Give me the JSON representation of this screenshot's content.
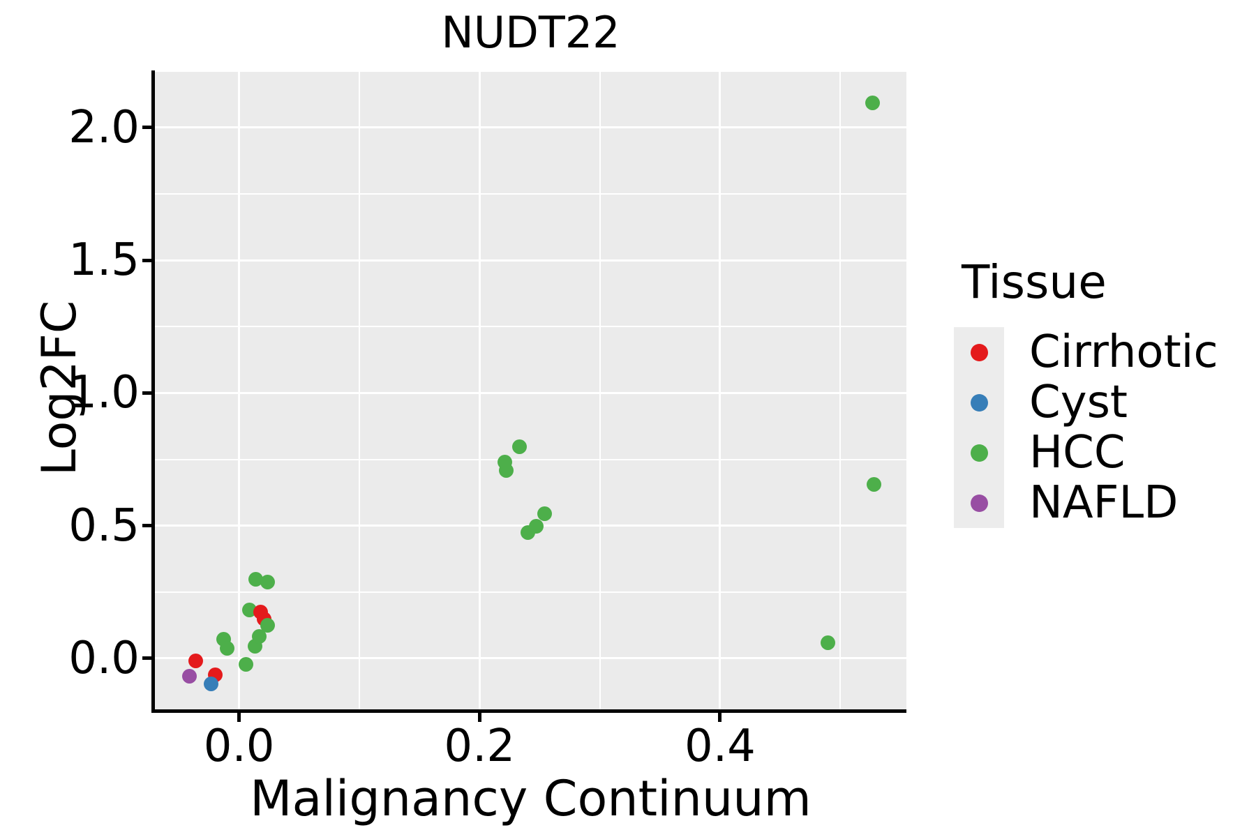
{
  "title": "NUDT22",
  "chart_data": {
    "type": "scatter",
    "title": "NUDT22",
    "xlabel": "Malignancy Continuum",
    "ylabel": "Log2FC",
    "xlim": [
      -0.07,
      0.555
    ],
    "ylim": [
      -0.2,
      2.21
    ],
    "grid": true,
    "plot_background": "#EBEBEB",
    "gridline_color": "#FFFFFF",
    "x_ticks": [
      {
        "value": 0.0,
        "label": "0.0"
      },
      {
        "value": 0.2,
        "label": "0.2"
      },
      {
        "value": 0.4,
        "label": "0.4"
      }
    ],
    "y_ticks": [
      {
        "value": 0.0,
        "label": "0.0"
      },
      {
        "value": 0.5,
        "label": "0.5"
      },
      {
        "value": 1.0,
        "label": "1.0"
      },
      {
        "value": 1.5,
        "label": "1.5"
      },
      {
        "value": 2.0,
        "label": "2.0"
      }
    ],
    "x_minor_ticks": [
      0.1,
      0.3,
      0.5
    ],
    "y_minor_ticks": [
      0.25,
      0.75,
      1.25,
      1.75
    ],
    "legend_position": "right",
    "points": [
      {
        "tissue": "Cirrhotic",
        "x": -0.036,
        "y": -0.01
      },
      {
        "tissue": "NAFLD",
        "x": -0.041,
        "y": -0.066
      },
      {
        "tissue": "Cirrhotic",
        "x": -0.02,
        "y": -0.063
      },
      {
        "tissue": "Cyst",
        "x": -0.023,
        "y": -0.095
      },
      {
        "tissue": "HCC",
        "x": -0.013,
        "y": 0.071
      },
      {
        "tissue": "HCC",
        "x": -0.01,
        "y": 0.038
      },
      {
        "tissue": "HCC",
        "x": 0.006,
        "y": -0.022
      },
      {
        "tissue": "HCC",
        "x": 0.0085,
        "y": 0.182
      },
      {
        "tissue": "Cirrhotic",
        "x": 0.018,
        "y": 0.175
      },
      {
        "tissue": "Cirrhotic",
        "x": 0.021,
        "y": 0.147
      },
      {
        "tissue": "HCC",
        "x": 0.013,
        "y": 0.045
      },
      {
        "tissue": "HCC",
        "x": 0.017,
        "y": 0.082
      },
      {
        "tissue": "HCC",
        "x": 0.024,
        "y": 0.124
      },
      {
        "tissue": "HCC",
        "x": 0.014,
        "y": 0.298
      },
      {
        "tissue": "HCC",
        "x": 0.024,
        "y": 0.287
      },
      {
        "tissue": "HCC",
        "x": 0.222,
        "y": 0.708
      },
      {
        "tissue": "HCC",
        "x": 0.221,
        "y": 0.74
      },
      {
        "tissue": "HCC",
        "x": 0.233,
        "y": 0.797
      },
      {
        "tissue": "HCC",
        "x": 0.24,
        "y": 0.475
      },
      {
        "tissue": "HCC",
        "x": 0.247,
        "y": 0.497
      },
      {
        "tissue": "HCC",
        "x": 0.254,
        "y": 0.546
      },
      {
        "tissue": "HCC",
        "x": 0.49,
        "y": 0.058
      },
      {
        "tissue": "HCC",
        "x": 0.528,
        "y": 0.655
      },
      {
        "tissue": "HCC",
        "x": 0.527,
        "y": 2.092
      }
    ]
  },
  "legend": {
    "title": "Tissue",
    "items": [
      {
        "label": "Cirrhotic",
        "color": "#E41A1C",
        "icon": "legend-dot"
      },
      {
        "label": "Cyst",
        "color": "#377EB8",
        "icon": "legend-dot"
      },
      {
        "label": "HCC",
        "color": "#4DAF4A",
        "icon": "legend-dot"
      },
      {
        "label": "NAFLD",
        "color": "#984EA3",
        "icon": "legend-dot"
      }
    ]
  }
}
